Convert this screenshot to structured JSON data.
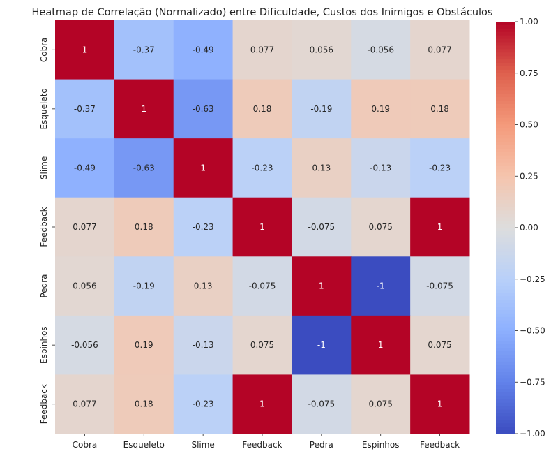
{
  "chart_data": {
    "type": "heatmap",
    "title": "Heatmap de Correlação (Normalizado) entre Dificuldade, Custos dos Inimigos e Obstáculos",
    "x_labels": [
      "Cobra",
      "Esqueleto",
      "Slime",
      "Feedback",
      "Pedra",
      "Espinhos",
      "Feedback"
    ],
    "y_labels": [
      "Cobra",
      "Esqueleto",
      "Slime",
      "Feedback",
      "Pedra",
      "Espinhos",
      "Feedback"
    ],
    "values": [
      [
        1,
        -0.37,
        -0.49,
        0.077,
        0.056,
        -0.056,
        0.077
      ],
      [
        -0.37,
        1,
        -0.63,
        0.18,
        -0.19,
        0.19,
        0.18
      ],
      [
        -0.49,
        -0.63,
        1,
        -0.23,
        0.13,
        -0.13,
        -0.23
      ],
      [
        0.077,
        0.18,
        -0.23,
        1,
        -0.075,
        0.075,
        1
      ],
      [
        0.056,
        -0.19,
        0.13,
        -0.075,
        1,
        -1,
        -0.075
      ],
      [
        -0.056,
        0.19,
        -0.13,
        0.075,
        -1,
        1,
        0.075
      ],
      [
        0.077,
        0.18,
        -0.23,
        1,
        -0.075,
        0.075,
        1
      ]
    ],
    "annotations": [
      [
        "1",
        "-0.37",
        "-0.49",
        "0.077",
        "0.056",
        "-0.056",
        "0.077"
      ],
      [
        "-0.37",
        "1",
        "-0.63",
        "0.18",
        "-0.19",
        "0.19",
        "0.18"
      ],
      [
        "-0.49",
        "-0.63",
        "1",
        "-0.23",
        "0.13",
        "-0.13",
        "-0.23"
      ],
      [
        "0.077",
        "0.18",
        "-0.23",
        "1",
        "-0.075",
        "0.075",
        "1"
      ],
      [
        "0.056",
        "-0.19",
        "0.13",
        "-0.075",
        "1",
        "-1",
        "-0.075"
      ],
      [
        "-0.056",
        "0.19",
        "-0.13",
        "0.075",
        "-1",
        "1",
        "0.075"
      ],
      [
        "0.077",
        "0.18",
        "-0.23",
        "1",
        "-0.075",
        "0.075",
        "1"
      ]
    ],
    "colormap": "coolwarm",
    "vmin": -1,
    "vmax": 1,
    "colorbar_ticks": [
      "1.00",
      "0.75",
      "0.50",
      "0.25",
      "0.00",
      "−0.25",
      "−0.50",
      "−0.75",
      "−1.00"
    ],
    "colorbar_tick_values": [
      1,
      0.75,
      0.5,
      0.25,
      0,
      -0.25,
      -0.5,
      -0.75,
      -1
    ]
  }
}
